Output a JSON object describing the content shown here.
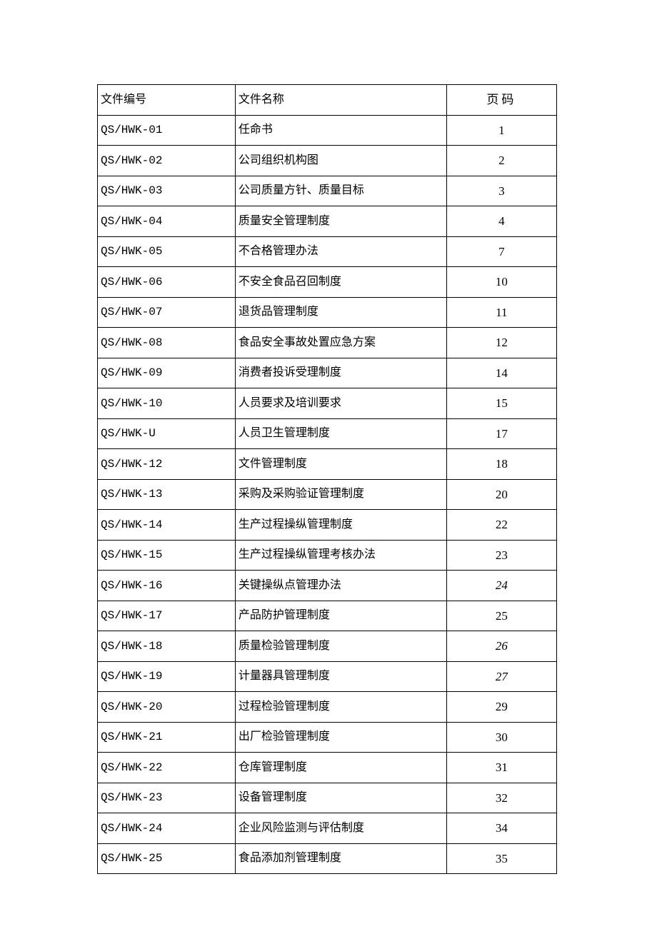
{
  "table": {
    "headers": {
      "code": "文件编号",
      "name": "文件名称",
      "page": "页码"
    },
    "rows": [
      {
        "code": "QS/HWK-01",
        "name": "任命书",
        "page": "1",
        "italic": false
      },
      {
        "code": "QS/HWK-02",
        "name": "公司组织机构图",
        "page": "2",
        "italic": false
      },
      {
        "code": "QS/HWK-03",
        "name": "公司质量方针、质量目标",
        "page": "3",
        "italic": false
      },
      {
        "code": "QS/HWK-04",
        "name": "质量安全管理制度",
        "page": "4",
        "italic": false
      },
      {
        "code": "QS/HWK-05",
        "name": "不合格管理办法",
        "page": "7",
        "italic": false
      },
      {
        "code": "QS/HWK-06",
        "name": "不安全食品召回制度",
        "page": "10",
        "italic": false
      },
      {
        "code": "QS/HWK-07",
        "name": "退货品管理制度",
        "page": "11",
        "italic": false
      },
      {
        "code": "QS/HWK-08",
        "name": "食品安全事故处置应急方案",
        "page": "12",
        "italic": false
      },
      {
        "code": "QS/HWK-09",
        "name": "消费者投诉受理制度",
        "page": "14",
        "italic": false
      },
      {
        "code": "QS/HWK-10",
        "name": "人员要求及培训要求",
        "page": "15",
        "italic": false
      },
      {
        "code": "QS/HWK-U",
        "name": "人员卫生管理制度",
        "page": "17",
        "italic": false
      },
      {
        "code": "QS/HWK-12",
        "name": "文件管理制度",
        "page": "18",
        "italic": false
      },
      {
        "code": "QS/HWK-13",
        "name": "采购及采购验证管理制度",
        "page": "20",
        "italic": false
      },
      {
        "code": "QS/HWK-14",
        "name": "生产过程操纵管理制度",
        "page": "22",
        "italic": false
      },
      {
        "code": "QS/HWK-15",
        "name": "生产过程操纵管理考核办法",
        "page": "23",
        "italic": false
      },
      {
        "code": "QS/HWK-16",
        "name": "关键操纵点管理办法",
        "page": "24",
        "italic": true
      },
      {
        "code": "QS/HWK-17",
        "name": "产品防护管理制度",
        "page": "25",
        "italic": false
      },
      {
        "code": "QS/HWK-18",
        "name": "质量检验管理制度",
        "page": "26",
        "italic": true
      },
      {
        "code": "QS/HWK-19",
        "name": "计量器具管理制度",
        "page": "27",
        "italic": true
      },
      {
        "code": "QS/HWK-20",
        "name": "过程检验管理制度",
        "page": "29",
        "italic": false
      },
      {
        "code": "QS/HWK-21",
        "name": "出厂检验管理制度",
        "page": "30",
        "italic": false
      },
      {
        "code": "QS/HWK-22",
        "name": "仓库管理制度",
        "page": "31",
        "italic": false
      },
      {
        "code": "QS/HWK-23",
        "name": "设备管理制度",
        "page": "32",
        "italic": false
      },
      {
        "code": "QS/HWK-24",
        "name": "企业风险监测与评估制度",
        "page": "34",
        "italic": false
      },
      {
        "code": "QS/HWK-25",
        "name": "食品添加剂管理制度",
        "page": "35",
        "italic": false
      }
    ],
    "styling": {
      "border_color": "#000000",
      "background_color": "#ffffff",
      "header_font": "SimSun",
      "code_font": "Courier New",
      "page_font": "Times New Roman",
      "font_size": 16,
      "col_widths_pct": [
        30,
        46,
        24
      ],
      "col_align": [
        "left",
        "left",
        "center"
      ]
    }
  }
}
